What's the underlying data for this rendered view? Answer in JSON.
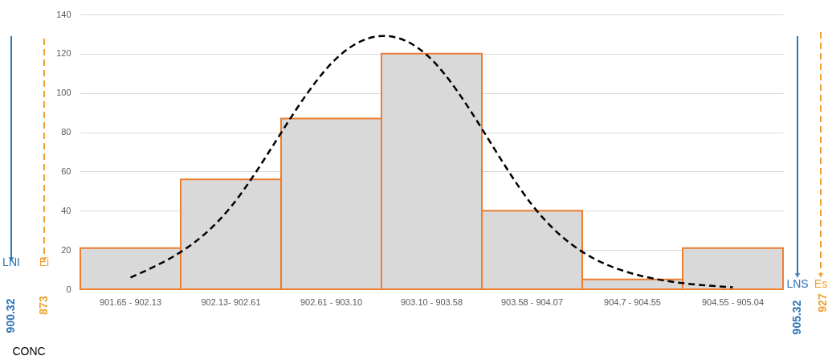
{
  "chart_data": {
    "type": "bar",
    "categories": [
      "901.65 - 902.13",
      "902.13- 902.61",
      "902.61 - 903.10",
      "903.10 - 903.58",
      "903.58 - 904.07",
      "904.7 - 904.55",
      "904.55 - 905.04"
    ],
    "series": [
      {
        "color": "#d9d9d9",
        "values": [
          21,
          56,
          87,
          120,
          40,
          5,
          21
        ]
      },
      {
        "type": "line",
        "color": "#000000",
        "line_style": "dashed",
        "values": [
          6,
          42,
          115,
          117,
          43,
          8,
          1
        ]
      }
    ],
    "ylim": [
      0,
      140
    ],
    "yticks": [
      0,
      20,
      40,
      60,
      80,
      100,
      120,
      140
    ],
    "grid": "y",
    "annotations": [
      "LNI",
      "900.32",
      "Ei",
      "873",
      "CONC",
      "LNS",
      "905.32",
      "Es",
      "927"
    ]
  }
}
